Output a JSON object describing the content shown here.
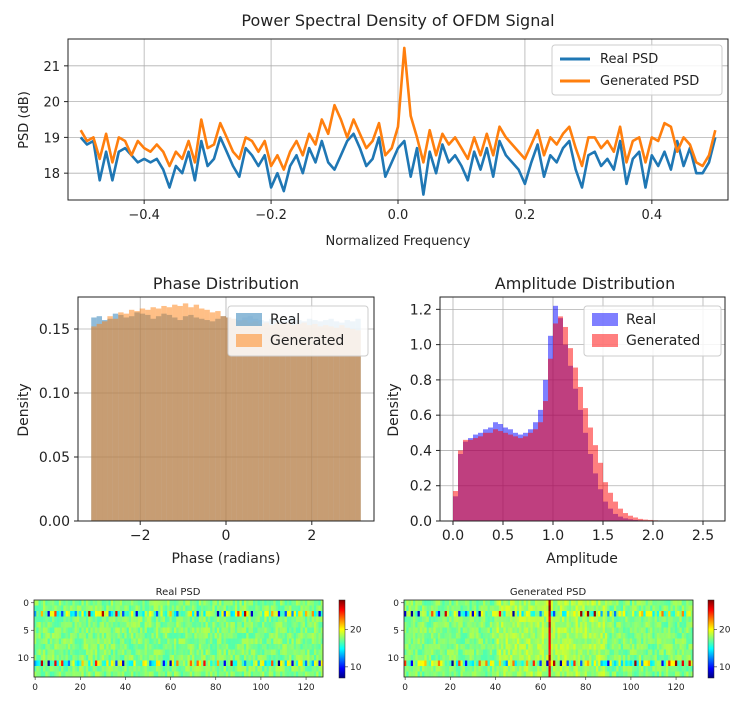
{
  "chart_data": [
    {
      "type": "line",
      "title": "Power Spectral Density of OFDM Signal",
      "xlabel": "Normalized Frequency",
      "ylabel": "PSD (dB)",
      "xlim": [
        -0.52,
        0.52
      ],
      "ylim": [
        17.25,
        21.75
      ],
      "xticks": [
        -0.4,
        -0.2,
        0.0,
        0.2,
        0.4
      ],
      "yticks": [
        18,
        19,
        20,
        21
      ],
      "grid": true,
      "legend": "top-right",
      "colors": {
        "real": "#1f77b4",
        "generated": "#ff7f0e"
      },
      "x": [
        -0.5,
        -0.49,
        -0.48,
        -0.47,
        -0.46,
        -0.45,
        -0.44,
        -0.43,
        -0.42,
        -0.41,
        -0.4,
        -0.39,
        -0.38,
        -0.37,
        -0.36,
        -0.35,
        -0.34,
        -0.33,
        -0.32,
        -0.31,
        -0.3,
        -0.29,
        -0.28,
        -0.27,
        -0.26,
        -0.25,
        -0.24,
        -0.23,
        -0.22,
        -0.21,
        -0.2,
        -0.19,
        -0.18,
        -0.17,
        -0.16,
        -0.15,
        -0.14,
        -0.13,
        -0.12,
        -0.11,
        -0.1,
        -0.09,
        -0.08,
        -0.07,
        -0.06,
        -0.05,
        -0.04,
        -0.03,
        -0.02,
        -0.01,
        0.0,
        0.01,
        0.02,
        0.03,
        0.04,
        0.05,
        0.06,
        0.07,
        0.08,
        0.09,
        0.1,
        0.11,
        0.12,
        0.13,
        0.14,
        0.15,
        0.16,
        0.17,
        0.18,
        0.19,
        0.2,
        0.21,
        0.22,
        0.23,
        0.24,
        0.25,
        0.26,
        0.27,
        0.28,
        0.29,
        0.3,
        0.31,
        0.32,
        0.33,
        0.34,
        0.35,
        0.36,
        0.37,
        0.38,
        0.39,
        0.4,
        0.41,
        0.42,
        0.43,
        0.44,
        0.45,
        0.46,
        0.47,
        0.48,
        0.49,
        0.5
      ],
      "series": [
        {
          "name": "Real PSD",
          "values": [
            19.0,
            18.8,
            18.9,
            17.8,
            18.6,
            17.8,
            18.6,
            18.7,
            18.5,
            18.3,
            18.4,
            18.3,
            18.4,
            18.1,
            17.6,
            18.2,
            18.0,
            18.6,
            17.8,
            18.9,
            18.2,
            18.4,
            19.0,
            18.6,
            18.2,
            17.9,
            18.7,
            18.5,
            18.2,
            18.5,
            17.6,
            18.0,
            17.5,
            18.2,
            18.5,
            18.0,
            18.7,
            18.3,
            18.9,
            18.3,
            18.1,
            18.5,
            18.9,
            19.1,
            18.7,
            18.2,
            18.4,
            19.0,
            17.9,
            18.3,
            18.7,
            18.9,
            17.9,
            18.7,
            17.4,
            18.6,
            18.0,
            18.8,
            18.3,
            18.5,
            18.2,
            17.8,
            18.6,
            18.1,
            18.7,
            17.9,
            18.9,
            18.5,
            18.3,
            18.1,
            17.7,
            18.3,
            18.8,
            17.9,
            18.5,
            18.3,
            18.7,
            18.9,
            18.1,
            17.6,
            18.5,
            18.6,
            18.2,
            18.4,
            18.1,
            18.9,
            17.7,
            18.4,
            18.6,
            17.6,
            18.5,
            18.2,
            18.6,
            18.1,
            18.9,
            18.2,
            18.7,
            18.0,
            18.0,
            18.3,
            19.0
          ]
        },
        {
          "name": "Generated PSD",
          "values": [
            19.2,
            18.9,
            19.0,
            18.4,
            19.1,
            18.3,
            19.0,
            18.9,
            18.5,
            18.9,
            18.7,
            18.6,
            18.8,
            18.6,
            18.2,
            18.6,
            18.4,
            18.9,
            18.3,
            19.5,
            18.7,
            18.8,
            19.4,
            19.0,
            18.6,
            18.4,
            19.0,
            18.9,
            18.6,
            18.9,
            18.2,
            18.5,
            18.1,
            18.6,
            18.9,
            18.5,
            19.1,
            18.8,
            19.5,
            19.1,
            19.9,
            19.5,
            19.0,
            19.5,
            19.1,
            18.7,
            18.9,
            19.4,
            18.5,
            18.7,
            19.3,
            21.5,
            19.6,
            19.0,
            18.3,
            19.2,
            18.5,
            19.1,
            18.8,
            19.0,
            18.7,
            18.4,
            19.0,
            18.5,
            19.1,
            18.5,
            19.3,
            19.0,
            18.8,
            18.6,
            18.4,
            18.8,
            19.2,
            18.5,
            19.0,
            18.8,
            19.1,
            19.3,
            18.7,
            18.2,
            19.0,
            19.0,
            18.7,
            18.9,
            18.6,
            19.3,
            18.3,
            18.9,
            19.0,
            18.3,
            19.0,
            18.9,
            19.4,
            19.3,
            18.6,
            19.0,
            18.8,
            18.3,
            18.2,
            18.5,
            19.2
          ]
        }
      ]
    },
    {
      "type": "bar",
      "subtype": "histogram",
      "title": "Phase Distribution",
      "xlabel": "Phase (radians)",
      "ylabel": "Density",
      "xlim": [
        -3.45,
        3.45
      ],
      "ylim": [
        0.0,
        0.175
      ],
      "xticks": [
        -2,
        0,
        2
      ],
      "yticks": [
        0.0,
        0.05,
        0.1,
        0.15
      ],
      "grid": true,
      "legend": "top-right",
      "bin_range": [
        -3.1416,
        3.1416
      ],
      "colors": {
        "real": "#1f77b4",
        "generated": "#ff7f0e",
        "overlap": "#b98a5c"
      },
      "series": [
        {
          "name": "Real",
          "values": [
            0.159,
            0.16,
            0.157,
            0.158,
            0.162,
            0.161,
            0.159,
            0.16,
            0.163,
            0.162,
            0.161,
            0.158,
            0.16,
            0.162,
            0.161,
            0.159,
            0.157,
            0.16,
            0.161,
            0.159,
            0.158,
            0.157,
            0.156,
            0.158,
            0.16,
            0.159,
            0.158,
            0.157,
            0.159,
            0.16,
            0.158,
            0.157,
            0.156,
            0.158,
            0.157,
            0.156,
            0.158,
            0.159,
            0.157,
            0.156,
            0.158,
            0.157,
            0.156,
            0.157,
            0.158,
            0.156,
            0.155,
            0.157,
            0.156,
            0.158
          ]
        },
        {
          "name": "Generated",
          "values": [
            0.152,
            0.154,
            0.156,
            0.16,
            0.158,
            0.163,
            0.162,
            0.165,
            0.164,
            0.166,
            0.165,
            0.167,
            0.166,
            0.168,
            0.167,
            0.169,
            0.168,
            0.17,
            0.167,
            0.169,
            0.166,
            0.165,
            0.163,
            0.164,
            0.16,
            0.159,
            0.158,
            0.156,
            0.157,
            0.155,
            0.156,
            0.154,
            0.155,
            0.153,
            0.155,
            0.154,
            0.155,
            0.153,
            0.154,
            0.155,
            0.153,
            0.154,
            0.152,
            0.153,
            0.152,
            0.151,
            0.153,
            0.151,
            0.15,
            0.149
          ]
        }
      ]
    },
    {
      "type": "bar",
      "subtype": "histogram",
      "title": "Amplitude Distribution",
      "xlabel": "Amplitude",
      "ylabel": "Density",
      "xlim": [
        -0.13,
        2.72
      ],
      "ylim": [
        0.0,
        1.27
      ],
      "xticks": [
        0.0,
        0.5,
        1.0,
        1.5,
        2.0,
        2.5
      ],
      "yticks": [
        0.0,
        0.2,
        0.4,
        0.6,
        0.8,
        1.0,
        1.2
      ],
      "grid": true,
      "legend": "top-right",
      "bin_width": 0.05,
      "colors": {
        "real": "#0000ff",
        "generated": "#ff0000",
        "overlap": "#b01860"
      },
      "series": [
        {
          "name": "Real",
          "values": [
            0.14,
            0.38,
            0.45,
            0.47,
            0.49,
            0.5,
            0.52,
            0.53,
            0.56,
            0.55,
            0.53,
            0.52,
            0.5,
            0.49,
            0.5,
            0.52,
            0.56,
            0.63,
            0.8,
            1.05,
            1.22,
            1.15,
            1.0,
            0.88,
            0.75,
            0.63,
            0.5,
            0.38,
            0.27,
            0.18,
            0.11,
            0.07,
            0.04,
            0.025,
            0.015,
            0.01,
            0.006,
            0.004,
            0.003,
            0.002,
            0.001,
            0.001,
            0.001,
            0.0005,
            0.0,
            0.0,
            0.0,
            0.0,
            0.0,
            0.0,
            0.0,
            0.0
          ]
        },
        {
          "name": "Generated",
          "values": [
            0.17,
            0.4,
            0.46,
            0.46,
            0.47,
            0.48,
            0.5,
            0.5,
            0.52,
            0.51,
            0.5,
            0.49,
            0.48,
            0.47,
            0.48,
            0.5,
            0.52,
            0.56,
            0.68,
            0.92,
            1.12,
            1.16,
            1.1,
            0.98,
            0.87,
            0.76,
            0.64,
            0.53,
            0.43,
            0.33,
            0.22,
            0.16,
            0.11,
            0.07,
            0.045,
            0.03,
            0.02,
            0.012,
            0.008,
            0.006,
            0.004,
            0.003,
            0.002,
            0.001,
            0.001,
            0.0005,
            0.0,
            0.0,
            0.0,
            0.0,
            0.0,
            0.0
          ]
        }
      ]
    },
    {
      "type": "heatmap",
      "title": "Real PSD",
      "rows": 14,
      "cols": 128,
      "xticks": [
        0,
        20,
        40,
        60,
        80,
        100,
        120
      ],
      "yticks": [
        0,
        5,
        10
      ],
      "colorbar_ticks": [
        10,
        20
      ],
      "value_range": [
        7,
        28
      ],
      "colormap": "jet",
      "background_level": 17.5,
      "hot_rows": [
        2,
        11
      ],
      "centre_column_highlight": false
    },
    {
      "type": "heatmap",
      "title": "Generated PSD",
      "rows": 14,
      "cols": 128,
      "xticks": [
        0,
        20,
        40,
        60,
        80,
        100,
        120
      ],
      "yticks": [
        0,
        5,
        10
      ],
      "colorbar_ticks": [
        10,
        20
      ],
      "value_range": [
        7,
        28
      ],
      "colormap": "jet",
      "background_level": 17.5,
      "hot_rows": [
        2,
        11
      ],
      "centre_column_highlight": true
    }
  ]
}
